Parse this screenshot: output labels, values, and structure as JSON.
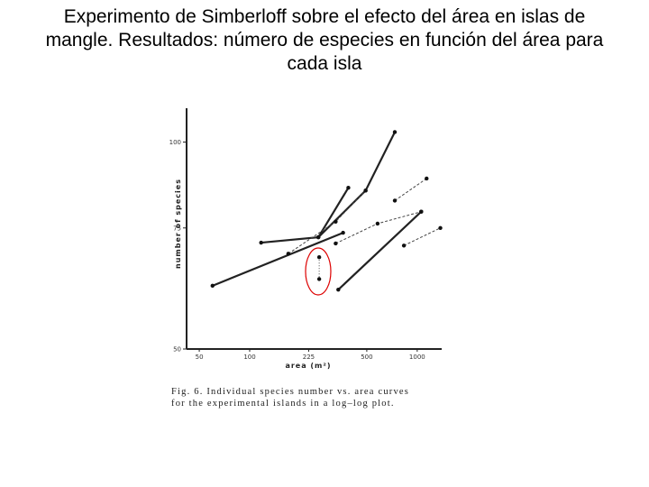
{
  "chart_data": {
    "type": "line",
    "title": "Experimento de Simberloff sobre el efecto del área en islas de mangle. Resultados: número de especies en función del área para cada isla",
    "x_label": "area (m²)",
    "y_label": "number of species",
    "caption_lines": [
      "Fig. 6.  Individual species number vs. area curves",
      "for the experimental islands in a log–log plot."
    ],
    "log_x": true,
    "log_y": true,
    "xlim": [
      42,
      1400
    ],
    "ylim": [
      50,
      112
    ],
    "xticks": [
      50,
      100,
      225,
      500,
      1000
    ],
    "yticks": [
      50,
      75,
      100
    ],
    "series": [
      {
        "color": "#222",
        "style": "solid",
        "x": [
          60,
          361
        ],
        "values": [
          61.8,
          73.8
        ]
      },
      {
        "color": "#222",
        "style": "solid",
        "x": [
          117,
          257,
          388
        ],
        "values": [
          71.4,
          72.7,
          85.8
        ]
      },
      {
        "color": "#222",
        "style": "solid",
        "x": [
          257,
          492,
          735
        ],
        "values": [
          72.7,
          85,
          103.4
        ]
      },
      {
        "color": "#444",
        "style": "dashed",
        "x": [
          170,
          326,
          492
        ],
        "values": [
          68.8,
          76.6,
          85
        ]
      },
      {
        "color": "#444",
        "style": "dashed",
        "x": [
          735,
          1138
        ],
        "values": [
          82.2,
          88.5
        ]
      },
      {
        "color": "#222",
        "style": "solid",
        "x": [
          338,
          1057
        ],
        "values": [
          61,
          79.2
        ]
      },
      {
        "color": "#444",
        "style": "dashed",
        "x": [
          326,
          580,
          1057
        ],
        "values": [
          71.2,
          76.1,
          79.2
        ]
      },
      {
        "color": "#444",
        "style": "dashed",
        "x": [
          833,
          1375
        ],
        "values": [
          70.7,
          75
        ]
      },
      {
        "color": "#444",
        "style": "dotted",
        "x": [
          260,
          260
        ],
        "values": [
          68,
          63.2
        ]
      }
    ]
  }
}
